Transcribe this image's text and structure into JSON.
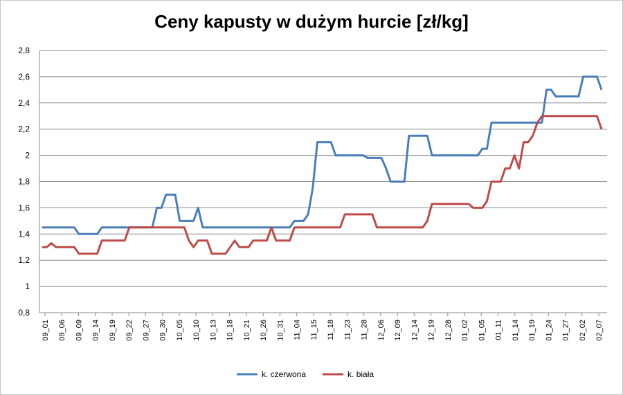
{
  "chart_data": {
    "type": "line",
    "title": "Ceny kapusty w dużym hurcie [zł/kg]",
    "xlabel": "",
    "ylabel": "",
    "ylim": [
      0.8,
      2.8
    ],
    "yticks": [
      "0,8",
      "1",
      "1,2",
      "1,4",
      "1,6",
      "1,8",
      "2",
      "2,2",
      "2,4",
      "2,6",
      "2,8"
    ],
    "grid": true,
    "legend_position": "bottom",
    "categories": [
      "09_01",
      "09_02",
      "09_03",
      "09_04",
      "09_05",
      "09_06",
      "09_07",
      "09_08",
      "09_09",
      "09_10",
      "09_11",
      "09_12",
      "09_13",
      "09_14",
      "09_15",
      "09_16",
      "09_17",
      "09_18",
      "09_19",
      "09_20",
      "09_21",
      "09_22",
      "09_23",
      "09_24",
      "09_25",
      "09_26",
      "09_27",
      "09_28",
      "09_29",
      "09_30",
      "10_03",
      "10_05",
      "10_06",
      "10_07",
      "10_08",
      "10_09",
      "10_10",
      "10_11",
      "10_12",
      "10_13",
      "10_14",
      "10_15",
      "10_18",
      "10_19",
      "10_20",
      "10_21",
      "10_22",
      "10_25",
      "10_26",
      "10_27",
      "10_28",
      "10_29",
      "10_31",
      "11_02",
      "11_03",
      "11_04",
      "11_05",
      "11_08",
      "11_09",
      "11_10",
      "11_12",
      "11_15",
      "11_16",
      "11_17",
      "11_18",
      "11_19",
      "11_22",
      "11_23",
      "11_24",
      "11_25",
      "11_26",
      "11_28",
      "11_29",
      "11_30",
      "12_01",
      "12_02",
      "12_03",
      "12_06",
      "12_07",
      "12_08",
      "12_09",
      "12_10",
      "12_13",
      "12_14",
      "12_15",
      "12_16",
      "12_17",
      "12_19",
      "12_20",
      "12_21",
      "12_22",
      "12_23",
      "12_27",
      "12_28",
      "12_29",
      "12_30",
      "12_31",
      "01_02",
      "01_03",
      "01_04",
      "01_05",
      "01_07",
      "01_10",
      "01_11",
      "01_12",
      "01_13",
      "01_14",
      "01_17",
      "01_18",
      "01_19",
      "01_20",
      "01_21",
      "01_24",
      "01_25",
      "01_26",
      "01_27",
      "01_28",
      "01_31",
      "02_01",
      "02_02",
      "02_03",
      "02_04",
      "02_07"
    ],
    "x_tick_labels": [
      "09_01",
      "09_06",
      "09_09",
      "09_14",
      "09_19",
      "09_22",
      "09_27",
      "09_30",
      "10_05",
      "10_10",
      "10_13",
      "10_18",
      "10_21",
      "10_26",
      "10_31",
      "11_04",
      "11_15",
      "11_18",
      "11_23",
      "11_28",
      "12_06",
      "12_09",
      "12_14",
      "12_19",
      "12_28",
      "01_02",
      "01_05",
      "01_11",
      "01_14",
      "01_19",
      "01_24",
      "01_27",
      "02_02",
      "02_07"
    ],
    "series": [
      {
        "name": "k. czerwona",
        "color": "#4a7ebb",
        "values": [
          1.45,
          1.45,
          1.45,
          1.45,
          1.45,
          1.45,
          1.45,
          1.45,
          1.4,
          1.4,
          1.4,
          1.4,
          1.4,
          1.45,
          1.45,
          1.45,
          1.45,
          1.45,
          1.45,
          1.45,
          1.45,
          1.45,
          1.45,
          1.45,
          1.45,
          1.6,
          1.6,
          1.7,
          1.7,
          1.7,
          1.5,
          1.5,
          1.5,
          1.5,
          1.6,
          1.45,
          1.45,
          1.45,
          1.45,
          1.45,
          1.45,
          1.45,
          1.45,
          1.45,
          1.45,
          1.45,
          1.45,
          1.45,
          1.45,
          1.45,
          1.45,
          1.45,
          1.45,
          1.45,
          1.45,
          1.5,
          1.5,
          1.5,
          1.55,
          1.75,
          2.1,
          2.1,
          2.1,
          2.1,
          2.0,
          2.0,
          2.0,
          2.0,
          2.0,
          2.0,
          2.0,
          1.98,
          1.98,
          1.98,
          1.98,
          1.9,
          1.8,
          1.8,
          1.8,
          1.8,
          2.15,
          2.15,
          2.15,
          2.15,
          2.15,
          2.0,
          2.0,
          2.0,
          2.0,
          2.0,
          2.0,
          2.0,
          2.0,
          2.0,
          2.0,
          2.0,
          2.05,
          2.05,
          2.25,
          2.25,
          2.25,
          2.25,
          2.25,
          2.25,
          2.25,
          2.25,
          2.25,
          2.25,
          2.25,
          2.25,
          2.5,
          2.5,
          2.45,
          2.45,
          2.45,
          2.45,
          2.45,
          2.45,
          2.6,
          2.6,
          2.6,
          2.6,
          2.5
        ]
      },
      {
        "name": "k. biała",
        "color": "#be4b48",
        "values": [
          1.3,
          1.3,
          1.33,
          1.3,
          1.3,
          1.3,
          1.3,
          1.3,
          1.25,
          1.25,
          1.25,
          1.25,
          1.25,
          1.35,
          1.35,
          1.35,
          1.35,
          1.35,
          1.35,
          1.45,
          1.45,
          1.45,
          1.45,
          1.45,
          1.45,
          1.45,
          1.45,
          1.45,
          1.45,
          1.45,
          1.45,
          1.45,
          1.35,
          1.3,
          1.35,
          1.35,
          1.35,
          1.25,
          1.25,
          1.25,
          1.25,
          1.3,
          1.35,
          1.3,
          1.3,
          1.3,
          1.35,
          1.35,
          1.35,
          1.35,
          1.45,
          1.35,
          1.35,
          1.35,
          1.35,
          1.45,
          1.45,
          1.45,
          1.45,
          1.45,
          1.45,
          1.45,
          1.45,
          1.45,
          1.45,
          1.45,
          1.55,
          1.55,
          1.55,
          1.55,
          1.55,
          1.55,
          1.55,
          1.45,
          1.45,
          1.45,
          1.45,
          1.45,
          1.45,
          1.45,
          1.45,
          1.45,
          1.45,
          1.45,
          1.5,
          1.63,
          1.63,
          1.63,
          1.63,
          1.63,
          1.63,
          1.63,
          1.63,
          1.63,
          1.6,
          1.6,
          1.6,
          1.65,
          1.8,
          1.8,
          1.8,
          1.9,
          1.9,
          2.0,
          1.9,
          2.1,
          2.1,
          2.15,
          2.25,
          2.3,
          2.3,
          2.3,
          2.3,
          2.3,
          2.3,
          2.3,
          2.3,
          2.3,
          2.3,
          2.3,
          2.3,
          2.3,
          2.2
        ]
      }
    ]
  }
}
